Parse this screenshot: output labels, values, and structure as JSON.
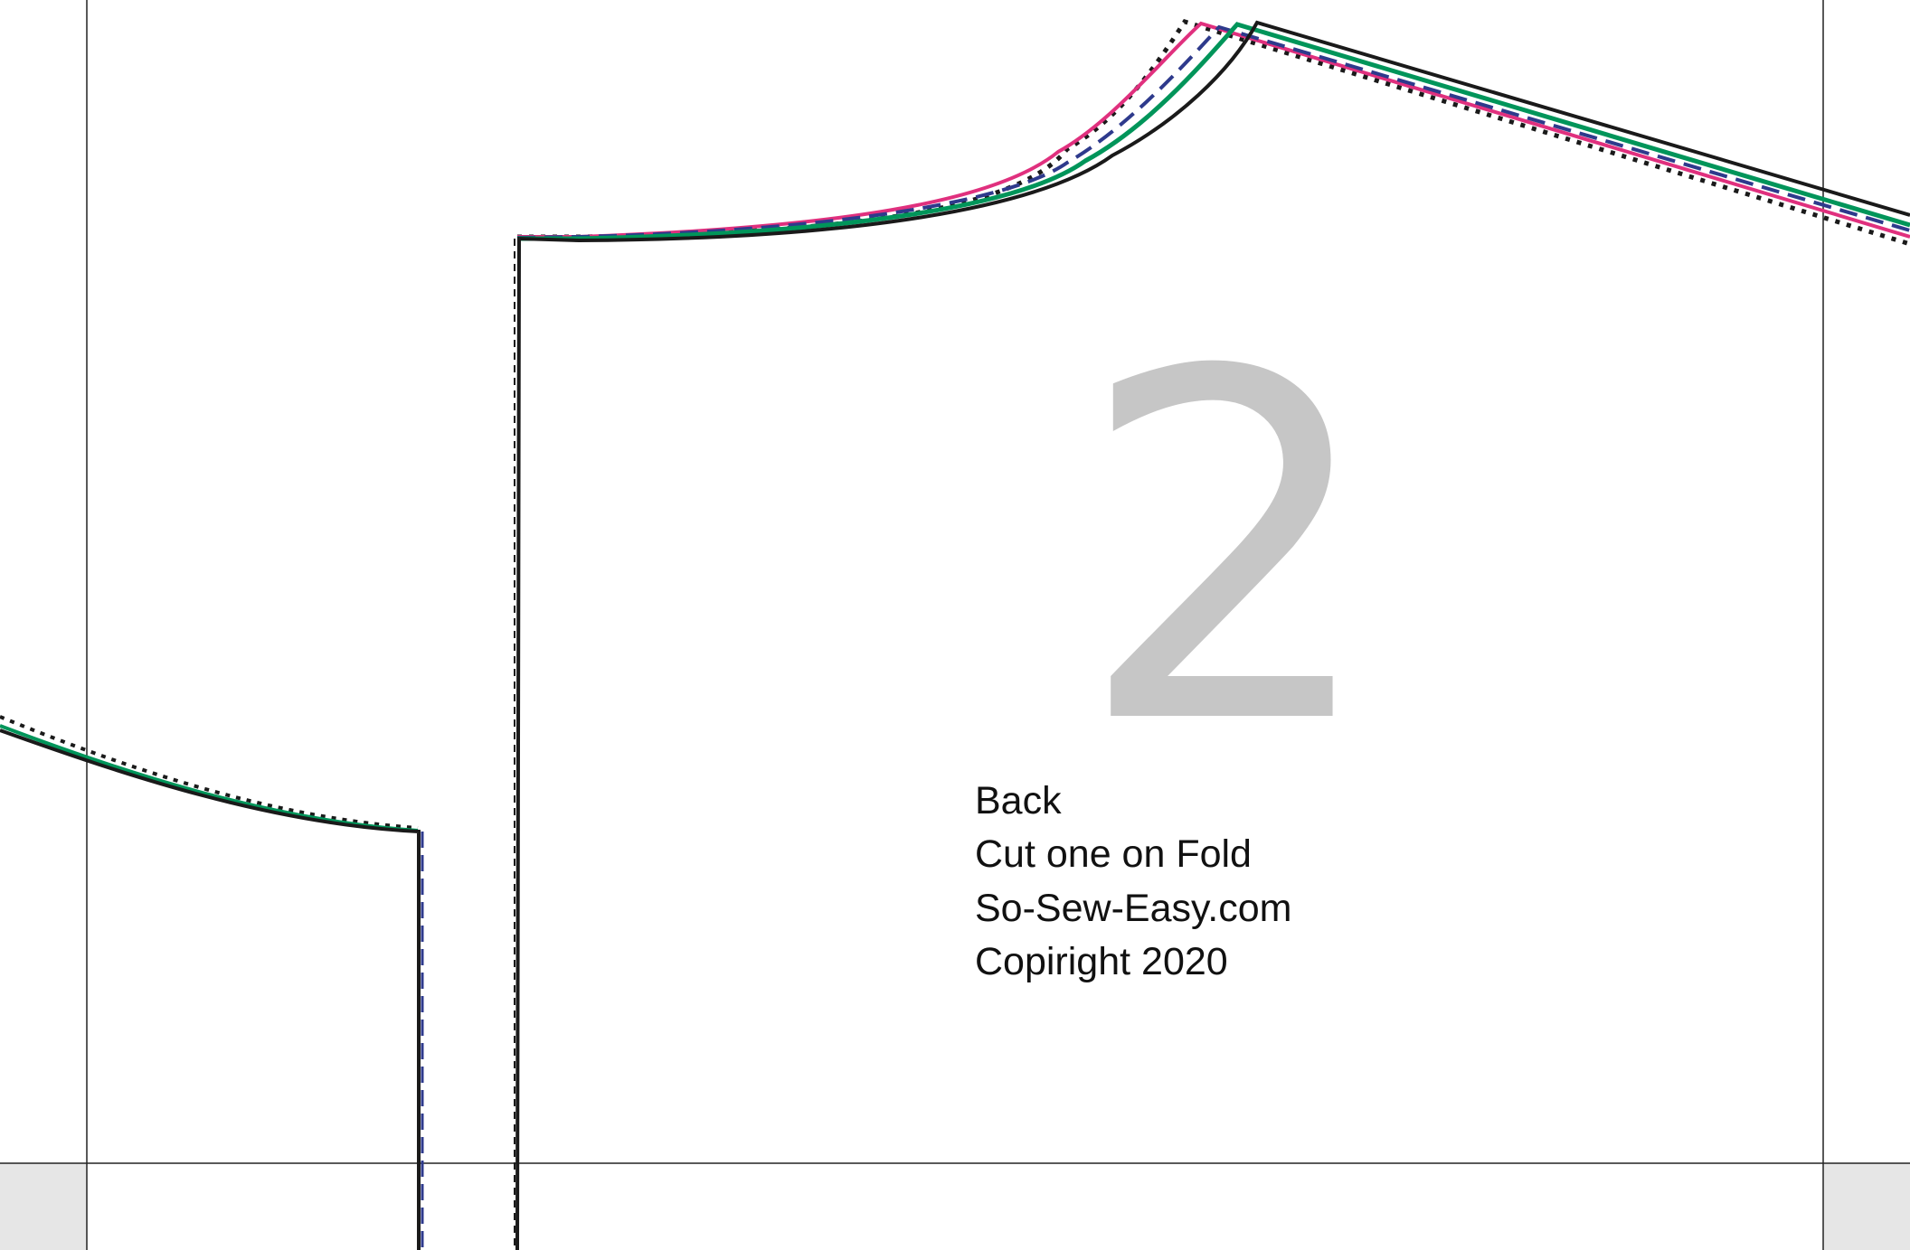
{
  "piece": {
    "number": "2",
    "lines": [
      "Back",
      "Cut one on Fold",
      "So-Sew-Easy.com",
      "Copiright 2020"
    ]
  },
  "colors": {
    "size_line_black": "#1a1a1a",
    "size_line_pink": "#e0307e",
    "size_line_green": "#00955a",
    "size_line_navy": "#2e3a8c",
    "page_border": "#222222",
    "corner_fill": "#e6e6e6",
    "piece_number": "#c6c6c6"
  }
}
